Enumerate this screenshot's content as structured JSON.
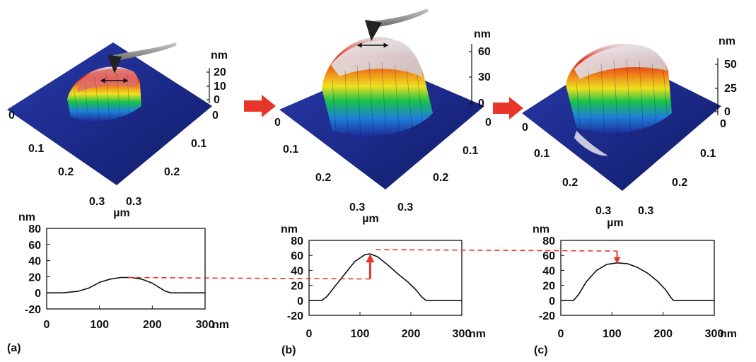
{
  "panels": [
    {
      "id": "a",
      "panel_label": "(a)",
      "afm_z_unit": "nm",
      "afm_z_ticks": [
        "20",
        "10",
        "0"
      ],
      "afm_axis_ticks_left": [
        "0",
        "0.1",
        "0.2",
        "0.3"
      ],
      "afm_axis_ticks_right": [
        "0",
        "0.1",
        "0.2",
        "0.3"
      ],
      "afm_xy_unit": "µm",
      "profile": {
        "y_unit": "nm",
        "x_unit": "nm",
        "y_ticks": [
          "80",
          "60",
          "40",
          "20",
          "0",
          "-20"
        ],
        "x_ticks": [
          "0",
          "100",
          "200",
          "300"
        ],
        "xlim": [
          0,
          300
        ],
        "ylim": [
          -20,
          80
        ],
        "peak": 19,
        "x": [
          0,
          30,
          60,
          80,
          100,
          120,
          140,
          160,
          180,
          200,
          215,
          225,
          235,
          260,
          300
        ],
        "y": [
          0,
          0,
          2,
          6,
          13,
          17,
          19,
          19,
          17,
          12,
          6,
          2,
          0,
          0,
          0
        ]
      }
    },
    {
      "id": "b",
      "panel_label": "(b)",
      "afm_z_unit": "nm",
      "afm_z_ticks": [
        "60",
        "30",
        "0"
      ],
      "afm_axis_ticks_left": [
        "0",
        "0.1",
        "0.2",
        "0.3"
      ],
      "afm_axis_ticks_right": [
        "0",
        "0.1",
        "0.2",
        "0.3"
      ],
      "afm_xy_unit": "µm",
      "profile": {
        "y_unit": "nm",
        "x_unit": "nm",
        "y_ticks": [
          "80",
          "60",
          "40",
          "20",
          "0",
          "-20"
        ],
        "x_ticks": [
          "0",
          "100",
          "200",
          "300"
        ],
        "xlim": [
          0,
          300
        ],
        "ylim": [
          -20,
          80
        ],
        "peak": 62,
        "x": [
          0,
          25,
          35,
          50,
          70,
          90,
          110,
          120,
          135,
          155,
          175,
          195,
          210,
          222,
          230,
          260,
          300
        ],
        "y": [
          0,
          0,
          5,
          18,
          35,
          52,
          61,
          62,
          58,
          47,
          35,
          24,
          14,
          4,
          0,
          0,
          0
        ]
      }
    },
    {
      "id": "c",
      "panel_label": "(c)",
      "afm_z_unit": "nm",
      "afm_z_ticks": [
        "50",
        "25",
        "0"
      ],
      "afm_axis_ticks_left": [
        "0",
        "0.1",
        "0.2",
        "0.3"
      ],
      "afm_axis_ticks_right": [
        "0",
        "0.1",
        "0.2",
        "0.3"
      ],
      "afm_xy_unit": "µm",
      "profile": {
        "y_unit": "nm",
        "x_unit": "nm",
        "y_ticks": [
          "80",
          "60",
          "40",
          "20",
          "0",
          "-20"
        ],
        "x_ticks": [
          "0",
          "100",
          "200",
          "300"
        ],
        "xlim": [
          0,
          300
        ],
        "ylim": [
          -20,
          80
        ],
        "peak": 50,
        "x": [
          0,
          25,
          35,
          50,
          70,
          90,
          110,
          130,
          150,
          170,
          190,
          205,
          215,
          220,
          250,
          300
        ],
        "y": [
          0,
          0,
          8,
          25,
          40,
          48,
          50,
          49,
          44,
          36,
          25,
          14,
          4,
          0,
          0,
          0
        ]
      }
    }
  ],
  "colors": {
    "arrow": "#e8352a",
    "surface_low": "#1c2f9a",
    "surface_mid_green": "#19c24a",
    "surface_yellow": "#f0e020",
    "surface_red": "#e02818",
    "surface_top": "#e8e4e6"
  },
  "icons": {
    "tip": "afm-cantilever-tip-icon",
    "arrow": "red-right-arrow-icon"
  }
}
